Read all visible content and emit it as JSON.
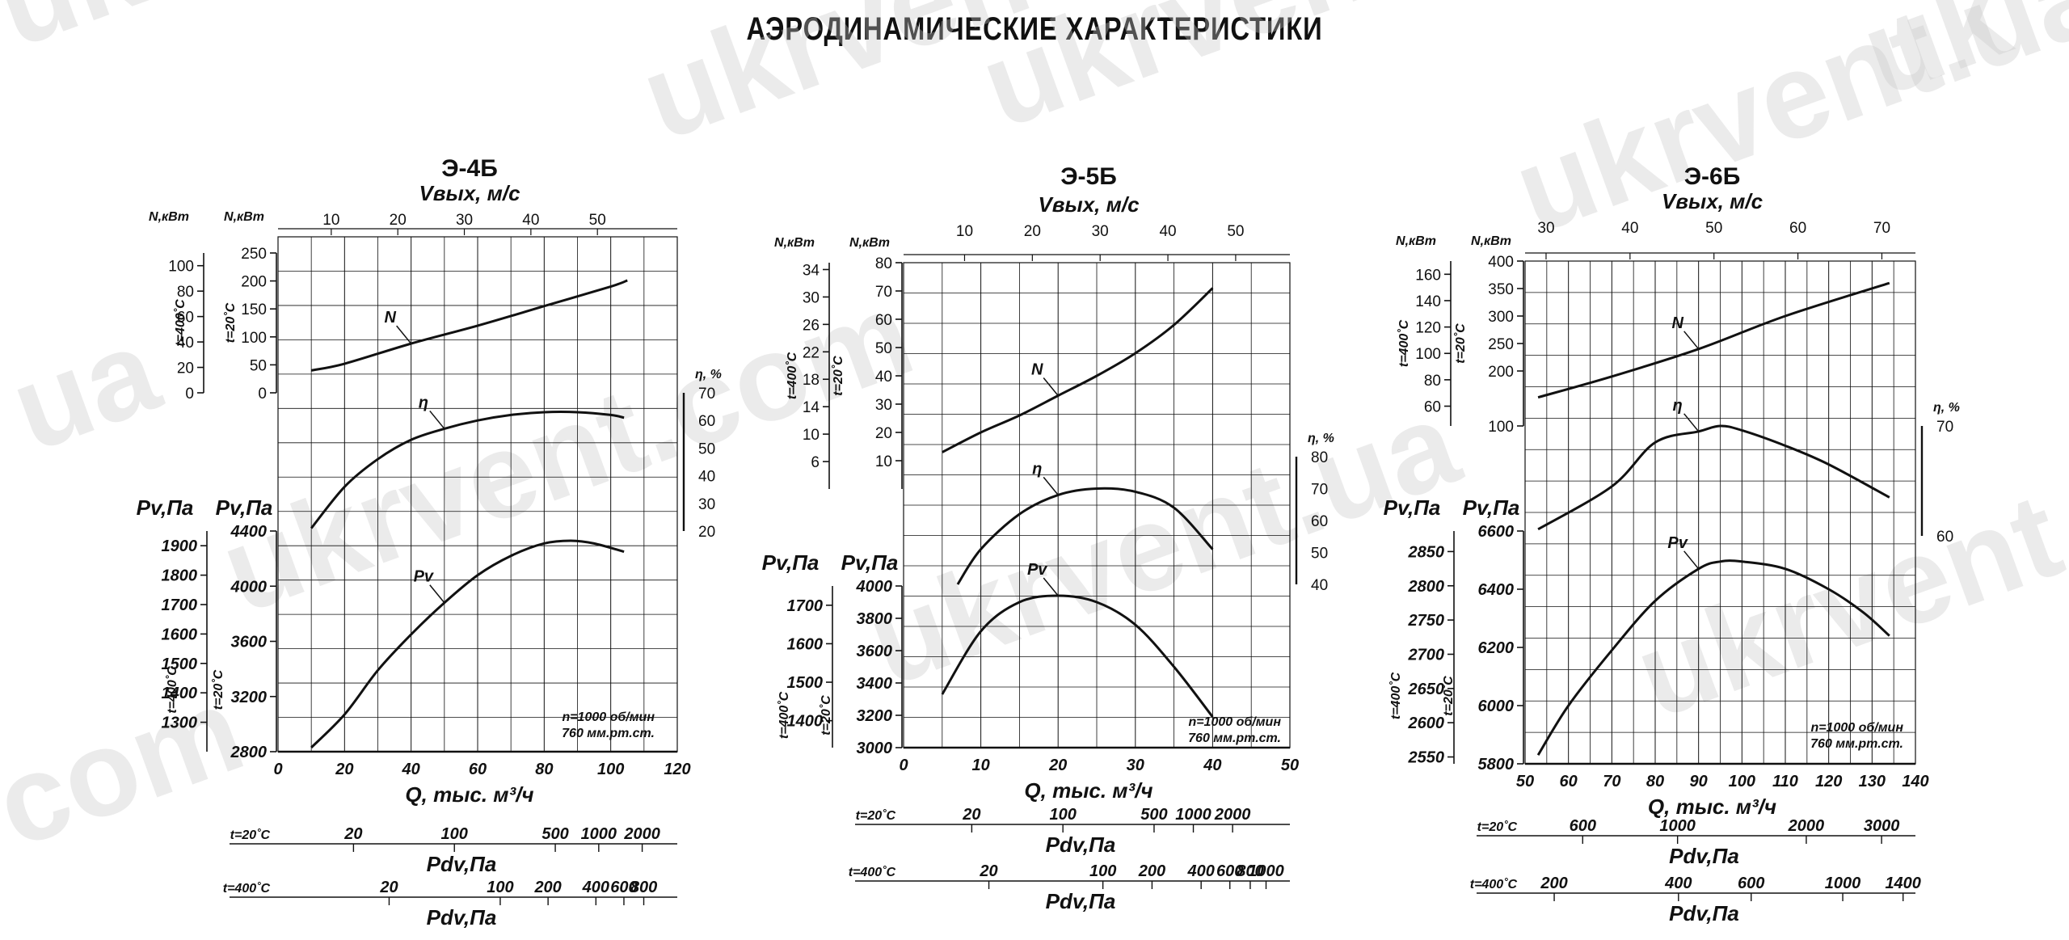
{
  "page": {
    "title": "АЭРОДИНАМИЧЕСКИЕ ХАРАКТЕРИСТИКИ",
    "watermarks": [
      "ukrvent.com",
      "ukrvent.ua",
      "ukrvent.com",
      "ukrvent.ua",
      "ukrvent.com",
      "ukrvent.ua",
      "ukrvent.com",
      "uk",
      "com",
      "ua"
    ]
  },
  "chart_data": [
    {
      "type": "line",
      "title": "Э-4Б",
      "velocity_axis": {
        "label": "Vвых, м/с",
        "ticks": [
          10,
          20,
          30,
          40,
          50
        ],
        "range": [
          2,
          62
        ]
      },
      "x": {
        "label": "Q, тыс. м³/ч",
        "range": [
          0,
          120
        ],
        "ticks": [
          0,
          20,
          40,
          60,
          80,
          100,
          120
        ]
      },
      "power_axes": {
        "label": "N,кВт",
        "t20": {
          "caption": "t=20˚С",
          "range": [
            0,
            250
          ],
          "ticks": [
            0,
            50,
            100,
            150,
            200,
            250
          ]
        },
        "t400": {
          "caption": "t=400˚С",
          "range": [
            0,
            110
          ],
          "ticks": [
            0,
            20,
            40,
            60,
            80,
            100
          ]
        }
      },
      "eff_axis": {
        "label": "η, %",
        "range": [
          20,
          70
        ],
        "ticks": [
          20,
          30,
          40,
          50,
          60,
          70
        ]
      },
      "pressure_axes": {
        "label": "Pv,Па",
        "t20": {
          "caption": "t=20˚С",
          "range": [
            2800,
            4400
          ],
          "ticks": [
            2800,
            3200,
            3600,
            4000,
            4400
          ]
        },
        "t400": {
          "caption": "t=400˚С",
          "range": [
            1200,
            1950
          ],
          "ticks": [
            1300,
            1400,
            1500,
            1600,
            1700,
            1800,
            1900
          ]
        }
      },
      "series": [
        {
          "name": "N",
          "x": [
            10,
            20,
            40,
            60,
            80,
            100,
            105
          ],
          "y": [
            40,
            52,
            88,
            120,
            155,
            190,
            201
          ]
        },
        {
          "name": "η",
          "x": [
            10,
            20,
            30,
            40,
            50,
            60,
            70,
            80,
            90,
            100,
            104
          ],
          "y": [
            21,
            36,
            46,
            53,
            57,
            60,
            62,
            63,
            63,
            62,
            61
          ]
        },
        {
          "name": "Pv",
          "x": [
            10,
            20,
            30,
            40,
            50,
            60,
            70,
            80,
            88,
            95,
            104
          ],
          "y": [
            2830,
            3070,
            3390,
            3650,
            3880,
            4080,
            4220,
            4310,
            4330,
            4310,
            4250
          ]
        }
      ],
      "note": [
        "n=1000 об/мин",
        "760 мм.рт.ст."
      ],
      "dyn_pressure": [
        {
          "caption": "t=20˚С",
          "label": "Pdv,Па",
          "ticks": [
            20,
            100,
            500,
            1000,
            2000
          ]
        },
        {
          "caption": "t=400˚С",
          "label": "Pdv,Па",
          "ticks": [
            20,
            100,
            200,
            400,
            600,
            800
          ]
        }
      ]
    },
    {
      "type": "line",
      "title": "Э-5Б",
      "velocity_axis": {
        "label": "Vвых, м/с",
        "ticks": [
          10,
          20,
          30,
          40,
          50
        ],
        "range": [
          1,
          58
        ]
      },
      "x": {
        "label": "Q, тыс. м³/ч",
        "range": [
          0,
          50
        ],
        "ticks": [
          0,
          10,
          20,
          30,
          40,
          50
        ]
      },
      "power_axes": {
        "label": "N,кВт",
        "t20": {
          "caption": "t=20˚С",
          "range": [
            0,
            80
          ],
          "ticks": [
            10,
            20,
            30,
            40,
            50,
            60,
            70,
            80
          ]
        },
        "t400": {
          "caption": "t=400˚С",
          "range": [
            2,
            35
          ],
          "ticks": [
            6,
            10,
            14,
            18,
            22,
            26,
            30,
            34
          ]
        }
      },
      "eff_axis": {
        "label": "η, %",
        "range": [
          40,
          80
        ],
        "ticks": [
          40,
          50,
          60,
          70,
          80
        ]
      },
      "pressure_axes": {
        "label": "Pv,Па",
        "t20": {
          "caption": "t=20˚С",
          "range": [
            3000,
            4000
          ],
          "ticks": [
            3000,
            3200,
            3400,
            3600,
            3800,
            4000
          ]
        },
        "t400": {
          "caption": "t=400˚С",
          "range": [
            1330,
            1750
          ],
          "ticks": [
            1400,
            1500,
            1600,
            1700
          ]
        }
      },
      "series": [
        {
          "name": "N",
          "x": [
            5,
            10,
            15,
            20,
            25,
            30,
            35,
            40
          ],
          "y": [
            13,
            20,
            26,
            33,
            40,
            48,
            58,
            71
          ]
        },
        {
          "name": "η",
          "x": [
            7,
            10,
            15,
            20,
            25,
            30,
            35,
            40
          ],
          "y": [
            40,
            51,
            62,
            68,
            70,
            69,
            64,
            51
          ]
        },
        {
          "name": "Pv",
          "x": [
            5,
            10,
            15,
            20,
            25,
            30,
            35,
            40
          ],
          "y": [
            3330,
            3720,
            3900,
            3940,
            3900,
            3760,
            3500,
            3190
          ]
        }
      ],
      "note": [
        "n=1000 об/мин",
        "760 мм.рт.ст."
      ],
      "dyn_pressure": [
        {
          "caption": "t=20˚С",
          "label": "Pdv,Па",
          "ticks": [
            20,
            100,
            500,
            1000,
            2000
          ]
        },
        {
          "caption": "t=400˚С",
          "label": "Pdv,Па",
          "ticks": [
            20,
            100,
            200,
            400,
            600,
            800,
            1000
          ]
        }
      ]
    },
    {
      "type": "line",
      "title": "Э-6Б",
      "velocity_axis": {
        "label": "Vвых, м/с",
        "ticks": [
          30,
          40,
          50,
          60,
          70
        ],
        "range": [
          28,
          74
        ]
      },
      "x": {
        "label": "Q, тыс. м³/ч",
        "range": [
          50,
          140
        ],
        "ticks": [
          50,
          60,
          70,
          80,
          90,
          100,
          110,
          120,
          130,
          140
        ]
      },
      "power_axes": {
        "label": "N,кВт",
        "t20": {
          "caption": "t=20˚С",
          "range": [
            100,
            400
          ],
          "ticks": [
            100,
            200,
            250,
            300,
            350,
            400
          ]
        },
        "t400": {
          "caption": "t=400˚С",
          "range": [
            45,
            170
          ],
          "ticks": [
            60,
            80,
            100,
            120,
            140,
            160
          ]
        }
      },
      "eff_axis": {
        "label": "η, %",
        "range": [
          60,
          70
        ],
        "ticks": [
          60,
          70
        ]
      },
      "pressure_axes": {
        "label": "Pv,Па",
        "t20": {
          "caption": "t=20˚С",
          "range": [
            5800,
            6600
          ],
          "ticks": [
            5800,
            6000,
            6200,
            6400,
            6600
          ]
        },
        "t400": {
          "caption": "t=400˚С",
          "range": [
            2540,
            2880
          ],
          "ticks": [
            2550,
            2600,
            2650,
            2700,
            2750,
            2800,
            2850
          ]
        }
      },
      "series": [
        {
          "name": "N",
          "x": [
            53,
            70,
            90,
            110,
            134
          ],
          "y": [
            152,
            190,
            240,
            300,
            360
          ]
        },
        {
          "name": "η",
          "x": [
            53,
            70,
            80,
            90,
            95,
            100,
            110,
            120,
            134
          ],
          "y": [
            60.6,
            64.5,
            68.5,
            69.5,
            70,
            69.6,
            68.2,
            66.5,
            63.5
          ]
        },
        {
          "name": "Pv",
          "x": [
            53,
            60,
            70,
            80,
            90,
            95,
            100,
            110,
            120,
            128,
            134
          ],
          "y": [
            5830,
            6000,
            6190,
            6360,
            6470,
            6495,
            6495,
            6470,
            6400,
            6320,
            6240
          ]
        }
      ],
      "note": [
        "n=1000 об/мин",
        "760 мм.рт.ст."
      ],
      "dyn_pressure": [
        {
          "caption": "t=20˚С",
          "label": "Pdv,Па",
          "ticks": [
            600,
            1000,
            2000,
            3000
          ]
        },
        {
          "caption": "t=400˚С",
          "label": "Pdv,Па",
          "ticks": [
            200,
            400,
            600,
            1000,
            1400
          ]
        }
      ]
    }
  ]
}
